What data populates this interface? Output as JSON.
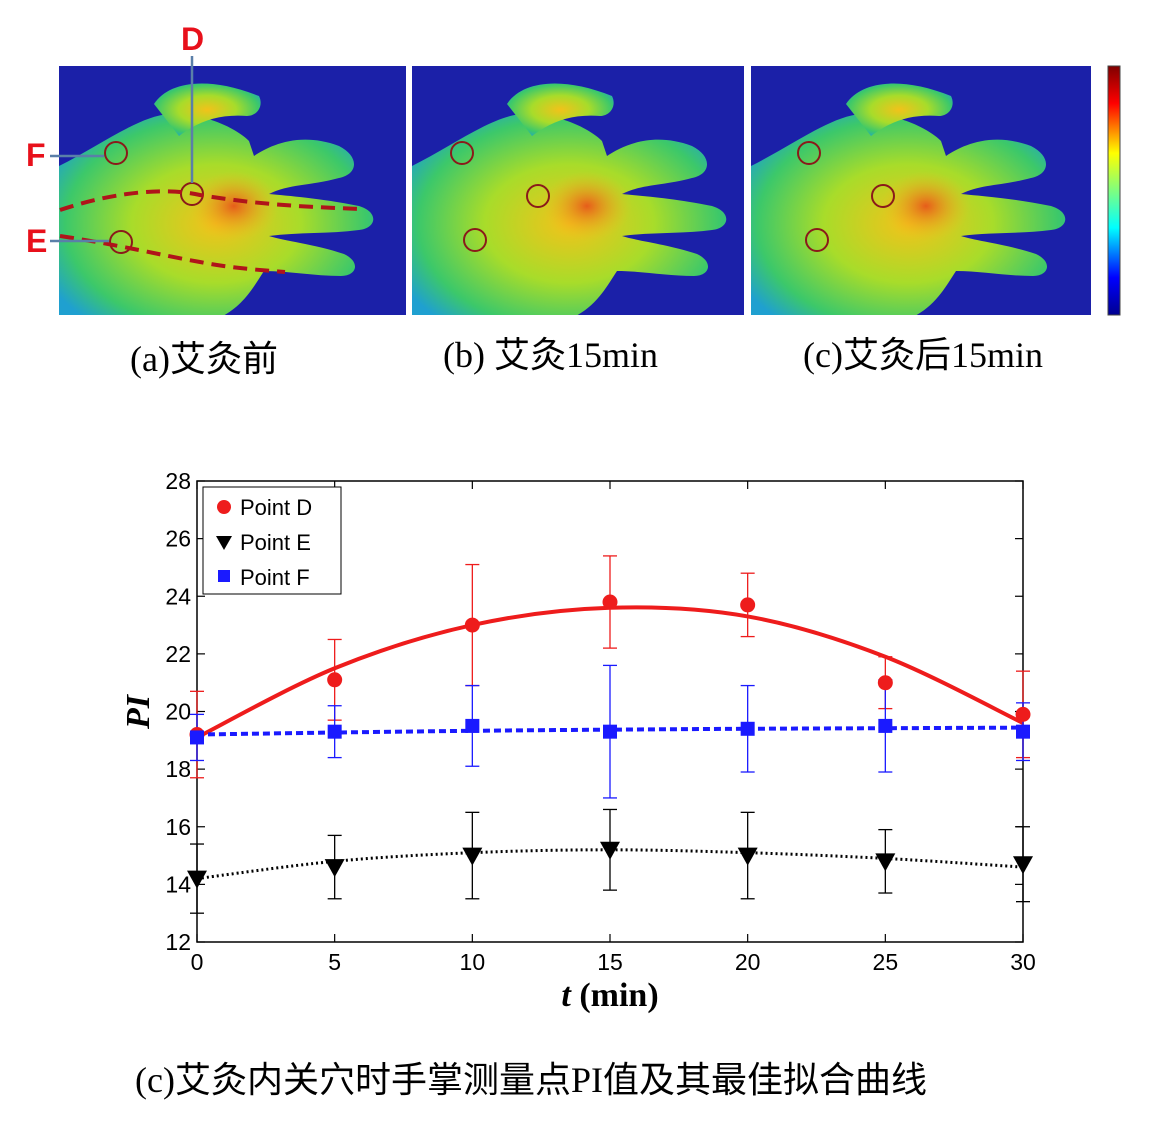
{
  "panels": [
    {
      "caption": "(a)艾灸前"
    },
    {
      "caption": "(b) 艾灸15min"
    },
    {
      "caption": "(c)艾灸后15min"
    }
  ],
  "point_markers": {
    "d": "D",
    "e": "E",
    "f": "F"
  },
  "colors": {
    "point_d": "#ee1c1c",
    "point_e": "#000000",
    "point_f": "#1a1aff",
    "annotation": "#e8101b",
    "dashed_line": "#b0141a",
    "thermal_background": "#1b20a8"
  },
  "figure_caption": "(c)艾灸内关穴时手掌测量点PI值及其最佳拟合曲线",
  "chart_data": {
    "type": "scatter",
    "xlabel_var": "t",
    "xlabel_unit": " (min)",
    "ylabel": "PI",
    "xlim": [
      0,
      30
    ],
    "ylim": [
      12,
      28
    ],
    "x_ticks": [
      0,
      5,
      10,
      15,
      20,
      25,
      30
    ],
    "y_ticks": [
      12,
      14,
      16,
      18,
      20,
      22,
      24,
      26,
      28
    ],
    "grid": false,
    "legend_position": "top-left",
    "x": [
      0,
      5,
      10,
      15,
      20,
      25,
      30
    ],
    "series": [
      {
        "name": "Point D",
        "marker": "circle",
        "values": [
          19.2,
          21.1,
          23.0,
          23.8,
          23.7,
          21.0,
          19.9
        ],
        "error": [
          1.5,
          1.4,
          2.1,
          1.6,
          1.1,
          0.9,
          1.5
        ],
        "fit": [
          19.1,
          21.5,
          23.0,
          23.6,
          23.3,
          21.9,
          19.6
        ],
        "fit_style": "solid"
      },
      {
        "name": "Point E",
        "marker": "triangle-down",
        "values": [
          14.2,
          14.6,
          15.0,
          15.2,
          15.0,
          14.8,
          14.7
        ],
        "error": [
          1.2,
          1.1,
          1.5,
          1.4,
          1.5,
          1.1,
          1.3
        ],
        "fit": [
          14.2,
          14.8,
          15.1,
          15.2,
          15.1,
          14.9,
          14.6
        ],
        "fit_style": "dotted"
      },
      {
        "name": "Point F",
        "marker": "square",
        "values": [
          19.1,
          19.3,
          19.5,
          19.3,
          19.4,
          19.5,
          19.3
        ],
        "error": [
          0.8,
          0.9,
          1.4,
          2.3,
          1.5,
          1.6,
          1.0
        ],
        "fit": [
          19.2,
          19.27,
          19.33,
          19.37,
          19.4,
          19.42,
          19.44
        ],
        "fit_style": "dashed"
      }
    ]
  }
}
